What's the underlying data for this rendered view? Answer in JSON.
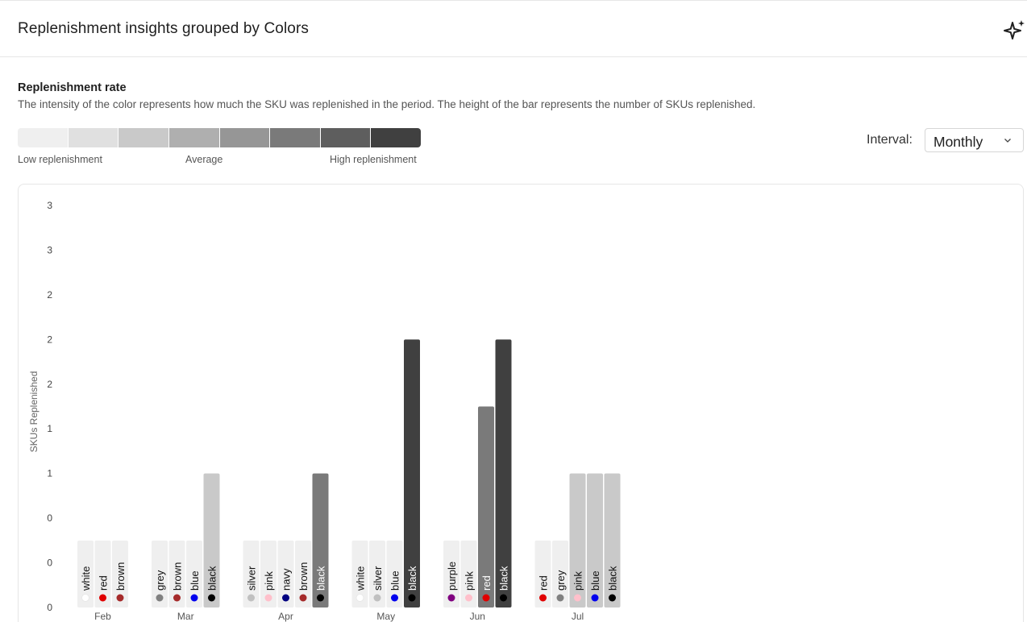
{
  "header": {
    "title": "Replenishment insights grouped by Colors",
    "icon": "sparkle-icon"
  },
  "section": {
    "title": "Replenishment rate",
    "description": "The intensity of the color represents how much the SKU was replenished in the period. The height of the bar represents the number of SKUs replenished."
  },
  "legend": {
    "scale_colors": [
      "#efefef",
      "#e0e0e0",
      "#c9c9c9",
      "#afafaf",
      "#969696",
      "#7a7a7a",
      "#5e5e5e",
      "#404040"
    ],
    "low_label": "Low replenishment",
    "avg_label": "Average",
    "high_label": "High replenishment"
  },
  "interval": {
    "label": "Interval:",
    "value": "Monthly"
  },
  "chart_data": {
    "type": "bar",
    "ylabel": "SKUs Replenished",
    "y_tick_labels": [
      "0",
      "0",
      "0",
      "1",
      "1",
      "2",
      "2",
      "2",
      "3",
      "3"
    ],
    "ylim": [
      0,
      3
    ],
    "groups": [
      {
        "month": "Feb",
        "bars": [
          {
            "color": "white",
            "dot": "#ffffff",
            "value": 0.5,
            "intensity": "#efefef"
          },
          {
            "color": "red",
            "dot": "#e00000",
            "value": 0.5,
            "intensity": "#efefef"
          },
          {
            "color": "brown",
            "dot": "#a52a2a",
            "value": 0.5,
            "intensity": "#efefef"
          }
        ]
      },
      {
        "month": "Mar",
        "bars": [
          {
            "color": "grey",
            "dot": "#808080",
            "value": 0.5,
            "intensity": "#efefef"
          },
          {
            "color": "brown",
            "dot": "#a52a2a",
            "value": 0.5,
            "intensity": "#efefef"
          },
          {
            "color": "blue",
            "dot": "#0000ee",
            "value": 0.5,
            "intensity": "#efefef"
          },
          {
            "color": "black",
            "dot": "#000000",
            "value": 1.0,
            "intensity": "#c9c9c9"
          }
        ]
      },
      {
        "month": "Apr",
        "bars": [
          {
            "color": "silver",
            "dot": "#c0c0c0",
            "value": 0.5,
            "intensity": "#efefef"
          },
          {
            "color": "pink",
            "dot": "#ffc0cb",
            "value": 0.5,
            "intensity": "#efefef"
          },
          {
            "color": "navy",
            "dot": "#000080",
            "value": 0.5,
            "intensity": "#efefef"
          },
          {
            "color": "brown",
            "dot": "#a52a2a",
            "value": 0.5,
            "intensity": "#efefef"
          },
          {
            "color": "black",
            "dot": "#000000",
            "value": 1.0,
            "intensity": "#7a7a7a"
          }
        ]
      },
      {
        "month": "May",
        "bars": [
          {
            "color": "white",
            "dot": "#ffffff",
            "value": 0.5,
            "intensity": "#efefef"
          },
          {
            "color": "silver",
            "dot": "#c0c0c0",
            "value": 0.5,
            "intensity": "#efefef"
          },
          {
            "color": "blue",
            "dot": "#0000ee",
            "value": 0.5,
            "intensity": "#efefef"
          },
          {
            "color": "black",
            "dot": "#000000",
            "value": 2.0,
            "intensity": "#404040"
          }
        ]
      },
      {
        "month": "Jun",
        "bars": [
          {
            "color": "purple",
            "dot": "#800080",
            "value": 0.5,
            "intensity": "#efefef"
          },
          {
            "color": "pink",
            "dot": "#ffc0cb",
            "value": 0.5,
            "intensity": "#efefef"
          },
          {
            "color": "red",
            "dot": "#e00000",
            "value": 1.5,
            "intensity": "#7a7a7a"
          },
          {
            "color": "black",
            "dot": "#000000",
            "value": 2.0,
            "intensity": "#404040"
          }
        ]
      },
      {
        "month": "Jul",
        "bars": [
          {
            "color": "red",
            "dot": "#e00000",
            "value": 0.5,
            "intensity": "#efefef"
          },
          {
            "color": "grey",
            "dot": "#808080",
            "value": 0.5,
            "intensity": "#efefef"
          },
          {
            "color": "pink",
            "dot": "#ffc0cb",
            "value": 1.0,
            "intensity": "#c9c9c9"
          },
          {
            "color": "blue",
            "dot": "#0000ee",
            "value": 1.0,
            "intensity": "#c9c9c9"
          },
          {
            "color": "black",
            "dot": "#000000",
            "value": 1.0,
            "intensity": "#c9c9c9"
          }
        ]
      }
    ]
  }
}
